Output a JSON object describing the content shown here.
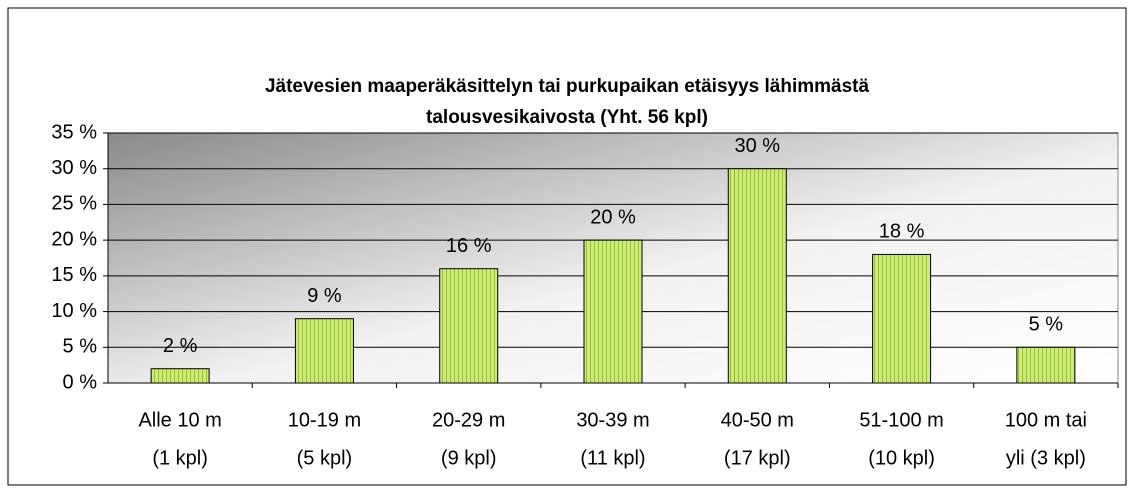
{
  "chart_data": {
    "type": "bar",
    "title": [
      "Jätevesien maaperäkäsittelyn tai purkupaikan etäisyys lähimmästä",
      "talousvesikaivosta (Yht. 56 kpl)"
    ],
    "categories": [
      [
        "Alle 10 m",
        "(1 kpl)"
      ],
      [
        "10-19 m",
        "(5 kpl)"
      ],
      [
        "20-29 m",
        "(9 kpl)"
      ],
      [
        "30-39 m",
        "(11 kpl)"
      ],
      [
        "40-50 m",
        "(17 kpl)"
      ],
      [
        "51-100 m",
        "(10 kpl)"
      ],
      [
        "100 m tai",
        "yli (3 kpl)"
      ]
    ],
    "values": [
      2,
      9,
      16,
      20,
      30,
      18,
      5
    ],
    "value_labels": [
      "2 %",
      "9 %",
      "16 %",
      "20 %",
      "30 %",
      "18 %",
      "5 %"
    ],
    "color": "#ccee77",
    "ylim": [
      0,
      35
    ],
    "yticks": [
      {
        "value": 0,
        "label": "0 %"
      },
      {
        "value": 5,
        "label": "5 %"
      },
      {
        "value": 10,
        "label": "10 %"
      },
      {
        "value": 15,
        "label": "15 %"
      },
      {
        "value": 20,
        "label": "20 %"
      },
      {
        "value": 25,
        "label": "25 %"
      },
      {
        "value": 30,
        "label": "30 %"
      },
      {
        "value": 35,
        "label": "35 %"
      }
    ],
    "grid": true
  }
}
